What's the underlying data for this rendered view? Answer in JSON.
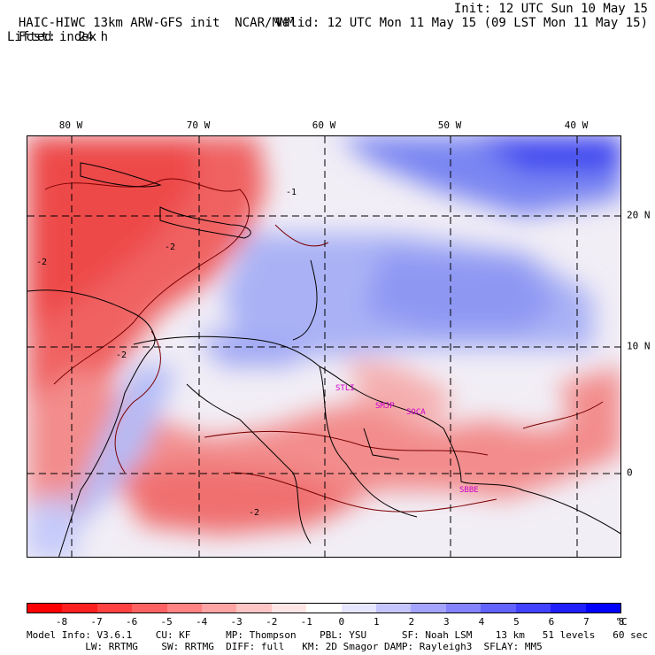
{
  "header": {
    "model": "HAIC-HIWC 13km ARW-GFS init",
    "center": "NCAR/MMM",
    "init": "Init: 12 UTC Sun 10 May 15",
    "fcst_label": "Fcst:",
    "fcst_value": "24 h",
    "valid": "Valid: 12 UTC Mon 11 May 15 (09 LST Mon 11 May 15)",
    "field": "Lifted index"
  },
  "map": {
    "lon_labels": [
      "80 W",
      "70 W",
      "60 W",
      "50 W",
      "40 W"
    ],
    "lat_labels": [
      "20 N",
      "10 N",
      "0"
    ],
    "station_labels": [
      "STLI",
      "SMJP",
      "SOCA",
      "SBBE"
    ],
    "contour_labels": [
      "-2",
      "-2",
      "-1",
      "-2",
      "-2"
    ],
    "negative_color": "#ee2222",
    "positive_color": "#2222ee"
  },
  "colorbar": {
    "colors": [
      "#ff0000",
      "#ff2020",
      "#ff4141",
      "#fe6262",
      "#fe8383",
      "#fea4a4",
      "#fec5c5",
      "#ffe6e6",
      "#ffffff",
      "#e6e6ff",
      "#c5c5fe",
      "#a4a4fe",
      "#8383fe",
      "#6262fe",
      "#4141ff",
      "#2020ff",
      "#0000ff"
    ],
    "labels": [
      "-8",
      "-7",
      "-6",
      "-5",
      "-4",
      "-3",
      "-2",
      "-1",
      "0",
      "1",
      "2",
      "3",
      "4",
      "5",
      "6",
      "7",
      "8"
    ],
    "unit": "°C"
  },
  "footer": {
    "line1": "Model Info: V3.6.1    CU: KF      MP: Thompson    PBL: YSU      SF: Noah LSM    13 km   51 levels   60 sec",
    "line2": "          LW: RRTMG    SW: RRTMG  DIFF: full   KM: 2D Smagor DAMP: Rayleigh3  SFLAY: MM5"
  }
}
